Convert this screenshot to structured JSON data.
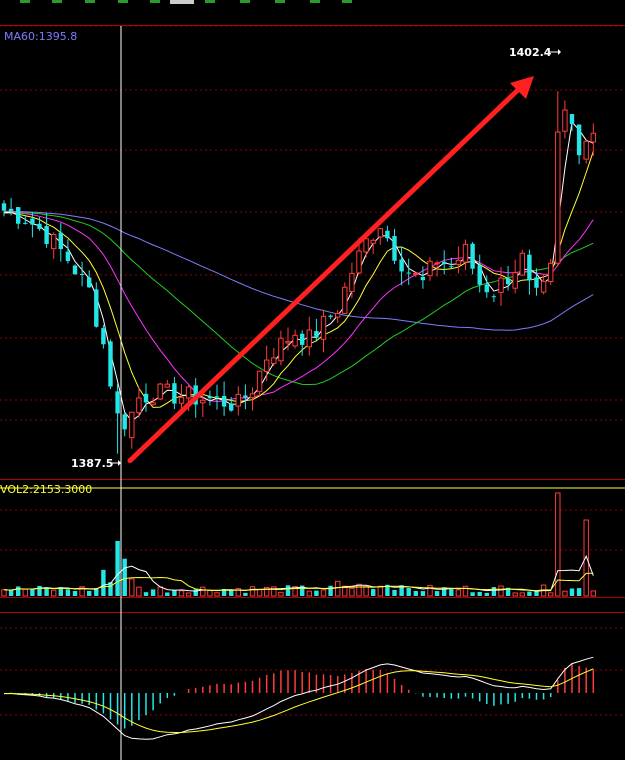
{
  "chart_data": {
    "type": "candlestick",
    "indicators": {
      "ma60_label": "MA60:1395.8",
      "vol_label": "VOL2:2153.3000"
    },
    "annotations": {
      "high_label": "1402.4",
      "low_label": "1387.5"
    },
    "price_range": [
      1386.5,
      1405.0
    ],
    "high": 1402.4,
    "low": 1387.5,
    "colors": {
      "up": "#ff3b3b",
      "down": "#24e6e6",
      "ma_fast": "#ffffff",
      "ma_mid": "#ffff33",
      "ma_slow": "#ff33ff",
      "ma_green": "#22cc22",
      "ma60": "#7d7dff",
      "arrow": "#ff2020",
      "grid": "#8b0000",
      "macd_dif": "#ffffff",
      "macd_dea": "#ffff33"
    },
    "trend_arrow": {
      "from": [
        0,
        1387.5
      ],
      "to": [
        83,
        1402.0
      ]
    }
  }
}
